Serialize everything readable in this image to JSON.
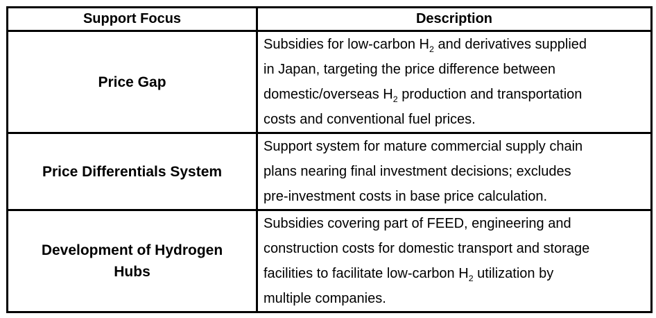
{
  "colors": {
    "background": "#ffffff",
    "border": "#000000",
    "text": "#000000"
  },
  "table": {
    "headers": [
      {
        "label": "Support Focus"
      },
      {
        "label": "Description"
      }
    ],
    "rows": [
      {
        "focus_lines": [
          "Price Gap"
        ],
        "description_lines": [
          [
            {
              "text": "Subsidies for low-carbon H"
            },
            {
              "sub": "2"
            },
            {
              "text": " and derivatives supplied"
            }
          ],
          [
            {
              "text": "in Japan, targeting the price difference between"
            }
          ],
          [
            {
              "text": "domestic/overseas H"
            },
            {
              "sub": "2"
            },
            {
              "text": " production and transportation"
            }
          ],
          [
            {
              "text": "costs and conventional fuel prices."
            }
          ]
        ]
      },
      {
        "focus_lines": [
          "Price Differentials System"
        ],
        "description_lines": [
          [
            {
              "text": "Support system for mature commercial supply chain"
            }
          ],
          [
            {
              "text": "plans nearing final investment decisions; excludes"
            }
          ],
          [
            {
              "text": "pre-investment costs in base price calculation."
            }
          ]
        ]
      },
      {
        "focus_lines": [
          "Development of Hydrogen",
          "Hubs"
        ],
        "description_lines": [
          [
            {
              "text": "Subsidies covering part of FEED, engineering and"
            }
          ],
          [
            {
              "text": "construction costs for domestic transport and storage"
            }
          ],
          [
            {
              "text": "facilities to facilitate low-carbon H"
            },
            {
              "sub": "2"
            },
            {
              "text": " utilization by"
            }
          ],
          [
            {
              "text": "multiple companies."
            }
          ]
        ]
      }
    ]
  }
}
